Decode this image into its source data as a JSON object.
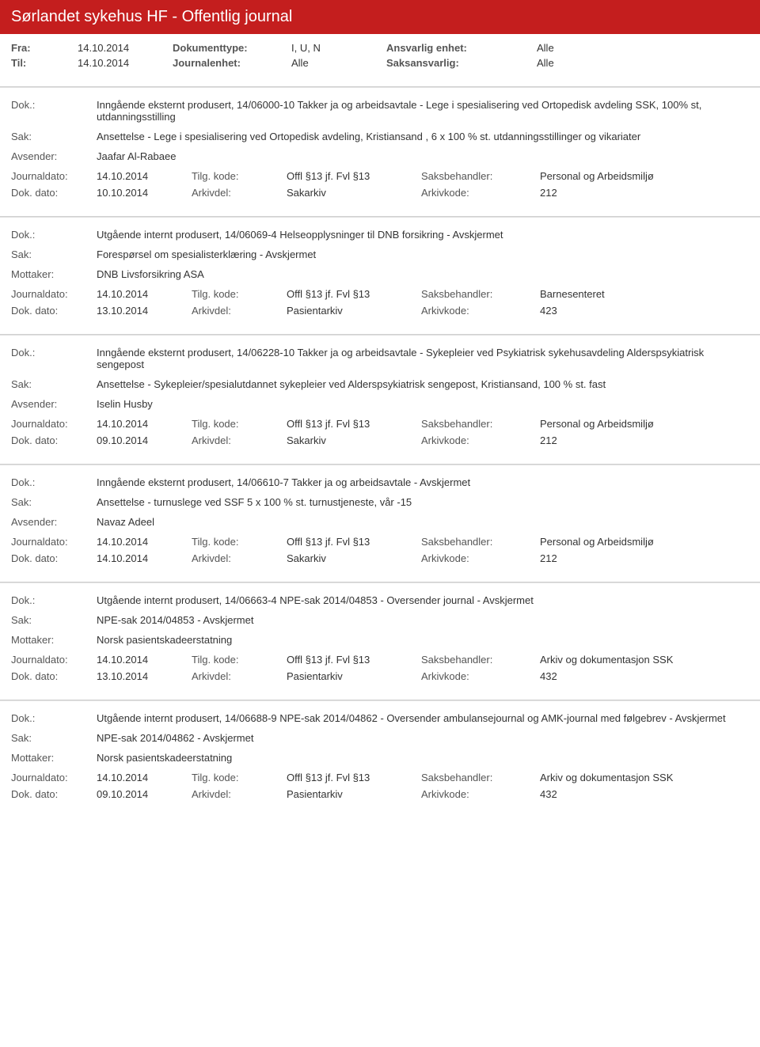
{
  "header": {
    "title": "Sørlandet sykehus HF - Offentlig journal"
  },
  "filters": {
    "fra_label": "Fra:",
    "fra_value": "14.10.2014",
    "til_label": "Til:",
    "til_value": "14.10.2014",
    "doktype_label": "Dokumenttype:",
    "doktype_value": "I, U, N",
    "journalenhet_label": "Journalenhet:",
    "journalenhet_value": "Alle",
    "ansvarlig_label": "Ansvarlig enhet:",
    "ansvarlig_value": "Alle",
    "saksansvarlig_label": "Saksansvarlig:",
    "saksansvarlig_value": "Alle"
  },
  "labels": {
    "dok": "Dok.:",
    "sak": "Sak:",
    "avsender": "Avsender:",
    "mottaker": "Mottaker:",
    "journaldato": "Journaldato:",
    "tilgkode": "Tilg. kode:",
    "saksbehandler": "Saksbehandler:",
    "dokdato": "Dok. dato:",
    "arkivdel": "Arkivdel:",
    "arkivkode": "Arkivkode:"
  },
  "entries": [
    {
      "dok": "Inngående eksternt produsert, 14/06000-10 Takker ja og arbeidsavtale - Lege i spesialisering ved Ortopedisk avdeling SSK, 100% st, utdanningsstilling",
      "sak": "Ansettelse - Lege i spesialisering ved Ortopedisk avdeling, Kristiansand , 6 x 100 % st. utdanningsstillinger og vikariater",
      "party_label": "Avsender:",
      "party": "Jaafar Al-Rabaee",
      "journaldato": "14.10.2014",
      "tilgkode": "Offl §13 jf. Fvl §13",
      "saksbehandler": "Personal og Arbeidsmiljø",
      "dokdato": "10.10.2014",
      "arkivdel": "Sakarkiv",
      "arkivkode": "212"
    },
    {
      "dok": "Utgående internt produsert, 14/06069-4 Helseopplysninger til DNB forsikring - Avskjermet",
      "sak": "Forespørsel om spesialisterklæring - Avskjermet",
      "party_label": "Mottaker:",
      "party": "DNB Livsforsikring ASA",
      "journaldato": "14.10.2014",
      "tilgkode": "Offl §13 jf. Fvl §13",
      "saksbehandler": "Barnesenteret",
      "dokdato": "13.10.2014",
      "arkivdel": "Pasientarkiv",
      "arkivkode": "423"
    },
    {
      "dok": "Inngående eksternt produsert, 14/06228-10 Takker ja og arbeidsavtale - Sykepleier ved Psykiatrisk sykehusavdeling Alderspsykiatrisk sengepost",
      "sak": "Ansettelse - Sykepleier/spesialutdannet sykepleier ved Alderspsykiatrisk sengepost, Kristiansand, 100 % st. fast",
      "party_label": "Avsender:",
      "party": "Iselin Husby",
      "journaldato": "14.10.2014",
      "tilgkode": "Offl §13 jf. Fvl §13",
      "saksbehandler": "Personal og Arbeidsmiljø",
      "dokdato": "09.10.2014",
      "arkivdel": "Sakarkiv",
      "arkivkode": "212"
    },
    {
      "dok": "Inngående eksternt produsert, 14/06610-7 Takker ja og arbeidsavtale - Avskjermet",
      "sak": "Ansettelse - turnuslege ved SSF 5 x 100 % st. turnustjeneste, vår -15",
      "party_label": "Avsender:",
      "party": "Navaz Adeel",
      "journaldato": "14.10.2014",
      "tilgkode": "Offl §13 jf. Fvl §13",
      "saksbehandler": "Personal og Arbeidsmiljø",
      "dokdato": "14.10.2014",
      "arkivdel": "Sakarkiv",
      "arkivkode": "212"
    },
    {
      "dok": "Utgående internt produsert, 14/06663-4 NPE-sak 2014/04853 - Oversender journal - Avskjermet",
      "sak": "NPE-sak 2014/04853 - Avskjermet",
      "party_label": "Mottaker:",
      "party": "Norsk pasientskadeerstatning",
      "journaldato": "14.10.2014",
      "tilgkode": "Offl §13 jf. Fvl §13",
      "saksbehandler": "Arkiv og dokumentasjon SSK",
      "dokdato": "13.10.2014",
      "arkivdel": "Pasientarkiv",
      "arkivkode": "432"
    },
    {
      "dok": "Utgående internt produsert, 14/06688-9 NPE-sak 2014/04862 - Oversender ambulansejournal og AMK-journal med følgebrev - Avskjermet",
      "sak": "NPE-sak 2014/04862 - Avskjermet",
      "party_label": "Mottaker:",
      "party": "Norsk pasientskadeerstatning",
      "journaldato": "14.10.2014",
      "tilgkode": "Offl §13 jf. Fvl §13",
      "saksbehandler": "Arkiv og dokumentasjon SSK",
      "dokdato": "09.10.2014",
      "arkivdel": "Pasientarkiv",
      "arkivkode": "432"
    }
  ],
  "colors": {
    "header_bg": "#c41e1e",
    "header_text": "#ffffff",
    "border": "#d0d0d0",
    "text": "#333333",
    "label": "#555555"
  }
}
